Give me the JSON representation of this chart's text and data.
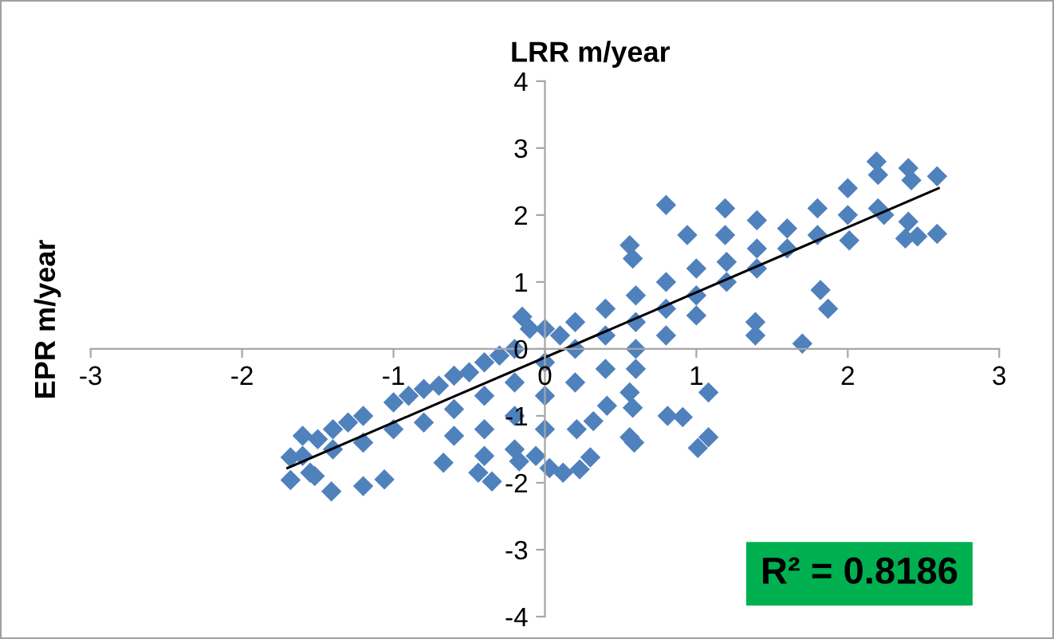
{
  "chart_data": {
    "type": "scatter",
    "title": "LRR m/year",
    "ylabel": "EPR m/year",
    "xlim": [
      -3,
      3
    ],
    "ylim": [
      -4,
      4
    ],
    "xticks": [
      -3,
      -2,
      -1,
      0,
      1,
      2,
      3
    ],
    "yticks": [
      -4,
      -3,
      -2,
      -1,
      0,
      1,
      2,
      3,
      4
    ],
    "grid": false,
    "marker": "diamond",
    "annotations": [
      "R² = 0.8186"
    ],
    "series": [
      {
        "color": "#4f81bd",
        "x": [
          -1.68,
          -1.68,
          -1.55,
          -1.52,
          -1.41,
          -1.2,
          -1.06,
          -0.15,
          0.8,
          0.56,
          0.58,
          1.19,
          1.19,
          1.4,
          0.94,
          1.39,
          1.39,
          1.7,
          1.82,
          1.87,
          2.19,
          2.59,
          2.42,
          2.59,
          2.46,
          2.38,
          2.01,
          2.24,
          1.08,
          1.08,
          1.01,
          0.81,
          0.91,
          0.56,
          0.59,
          0.56,
          0.58,
          0.41,
          0.3,
          0.23,
          0.12,
          0.03,
          -0.06,
          -0.17,
          -0.35,
          -0.44,
          -0.67,
          0.21,
          0.32,
          -1.6,
          -1.6,
          -1.4,
          -1.4,
          -1.2,
          -1.2,
          -1.0,
          -1.0,
          -0.8,
          -0.8,
          -0.6,
          -0.6,
          -0.6,
          -0.4,
          -0.4,
          -0.4,
          -0.4,
          -0.2,
          -0.2,
          -0.2,
          -0.2,
          0,
          0,
          0,
          0,
          0.2,
          0.2,
          0.2,
          0.4,
          0.4,
          0.4,
          0.6,
          0.6,
          0.6,
          0.6,
          0.8,
          0.8,
          0.8,
          1.0,
          1.0,
          1.0,
          1.2,
          1.2,
          1.4,
          1.4,
          1.6,
          1.6,
          1.8,
          1.8,
          2.0,
          2.0,
          2.2,
          2.2,
          2.4,
          2.4,
          -0.1,
          0.1,
          -1.5,
          -1.3,
          -0.9,
          -0.7,
          -0.5,
          -0.3
        ],
        "values": [
          -1.62,
          -1.96,
          -1.85,
          -1.9,
          -2.13,
          -2.05,
          -1.95,
          0.48,
          2.15,
          1.55,
          1.35,
          2.1,
          1.7,
          1.92,
          1.7,
          0.4,
          0.2,
          0.08,
          0.88,
          0.6,
          2.8,
          2.58,
          2.52,
          1.72,
          1.68,
          1.65,
          1.62,
          2.0,
          -0.65,
          -1.32,
          -1.48,
          -1.0,
          -1.02,
          -1.32,
          -1.4,
          -0.65,
          -0.88,
          -0.85,
          -1.62,
          -1.8,
          -1.85,
          -1.78,
          -1.6,
          -1.68,
          -1.98,
          -1.85,
          -1.7,
          -1.2,
          -1.08,
          -1.3,
          -1.6,
          -1.2,
          -1.5,
          -1.0,
          -1.4,
          -0.8,
          -1.2,
          -0.6,
          -1.1,
          -0.4,
          -0.9,
          -1.3,
          -0.2,
          -0.7,
          -1.2,
          -1.6,
          0.0,
          -0.5,
          -1.0,
          -1.5,
          0.3,
          -0.2,
          -0.7,
          -1.2,
          0.4,
          0.0,
          -0.5,
          0.6,
          0.2,
          -0.3,
          0.8,
          0.4,
          0.0,
          -0.3,
          1.0,
          0.6,
          0.2,
          1.2,
          0.8,
          0.5,
          1.3,
          1.0,
          1.5,
          1.2,
          1.8,
          1.5,
          2.1,
          1.7,
          2.4,
          2.0,
          2.6,
          2.1,
          2.7,
          1.9,
          0.3,
          0.2,
          -1.35,
          -1.1,
          -0.7,
          -0.55,
          -0.35,
          -0.1
        ]
      },
      {
        "type": "line",
        "marker": "none",
        "color": "#000000",
        "x": [
          -1.7,
          2.6
        ],
        "values": [
          -1.78,
          2.4
        ]
      }
    ]
  }
}
